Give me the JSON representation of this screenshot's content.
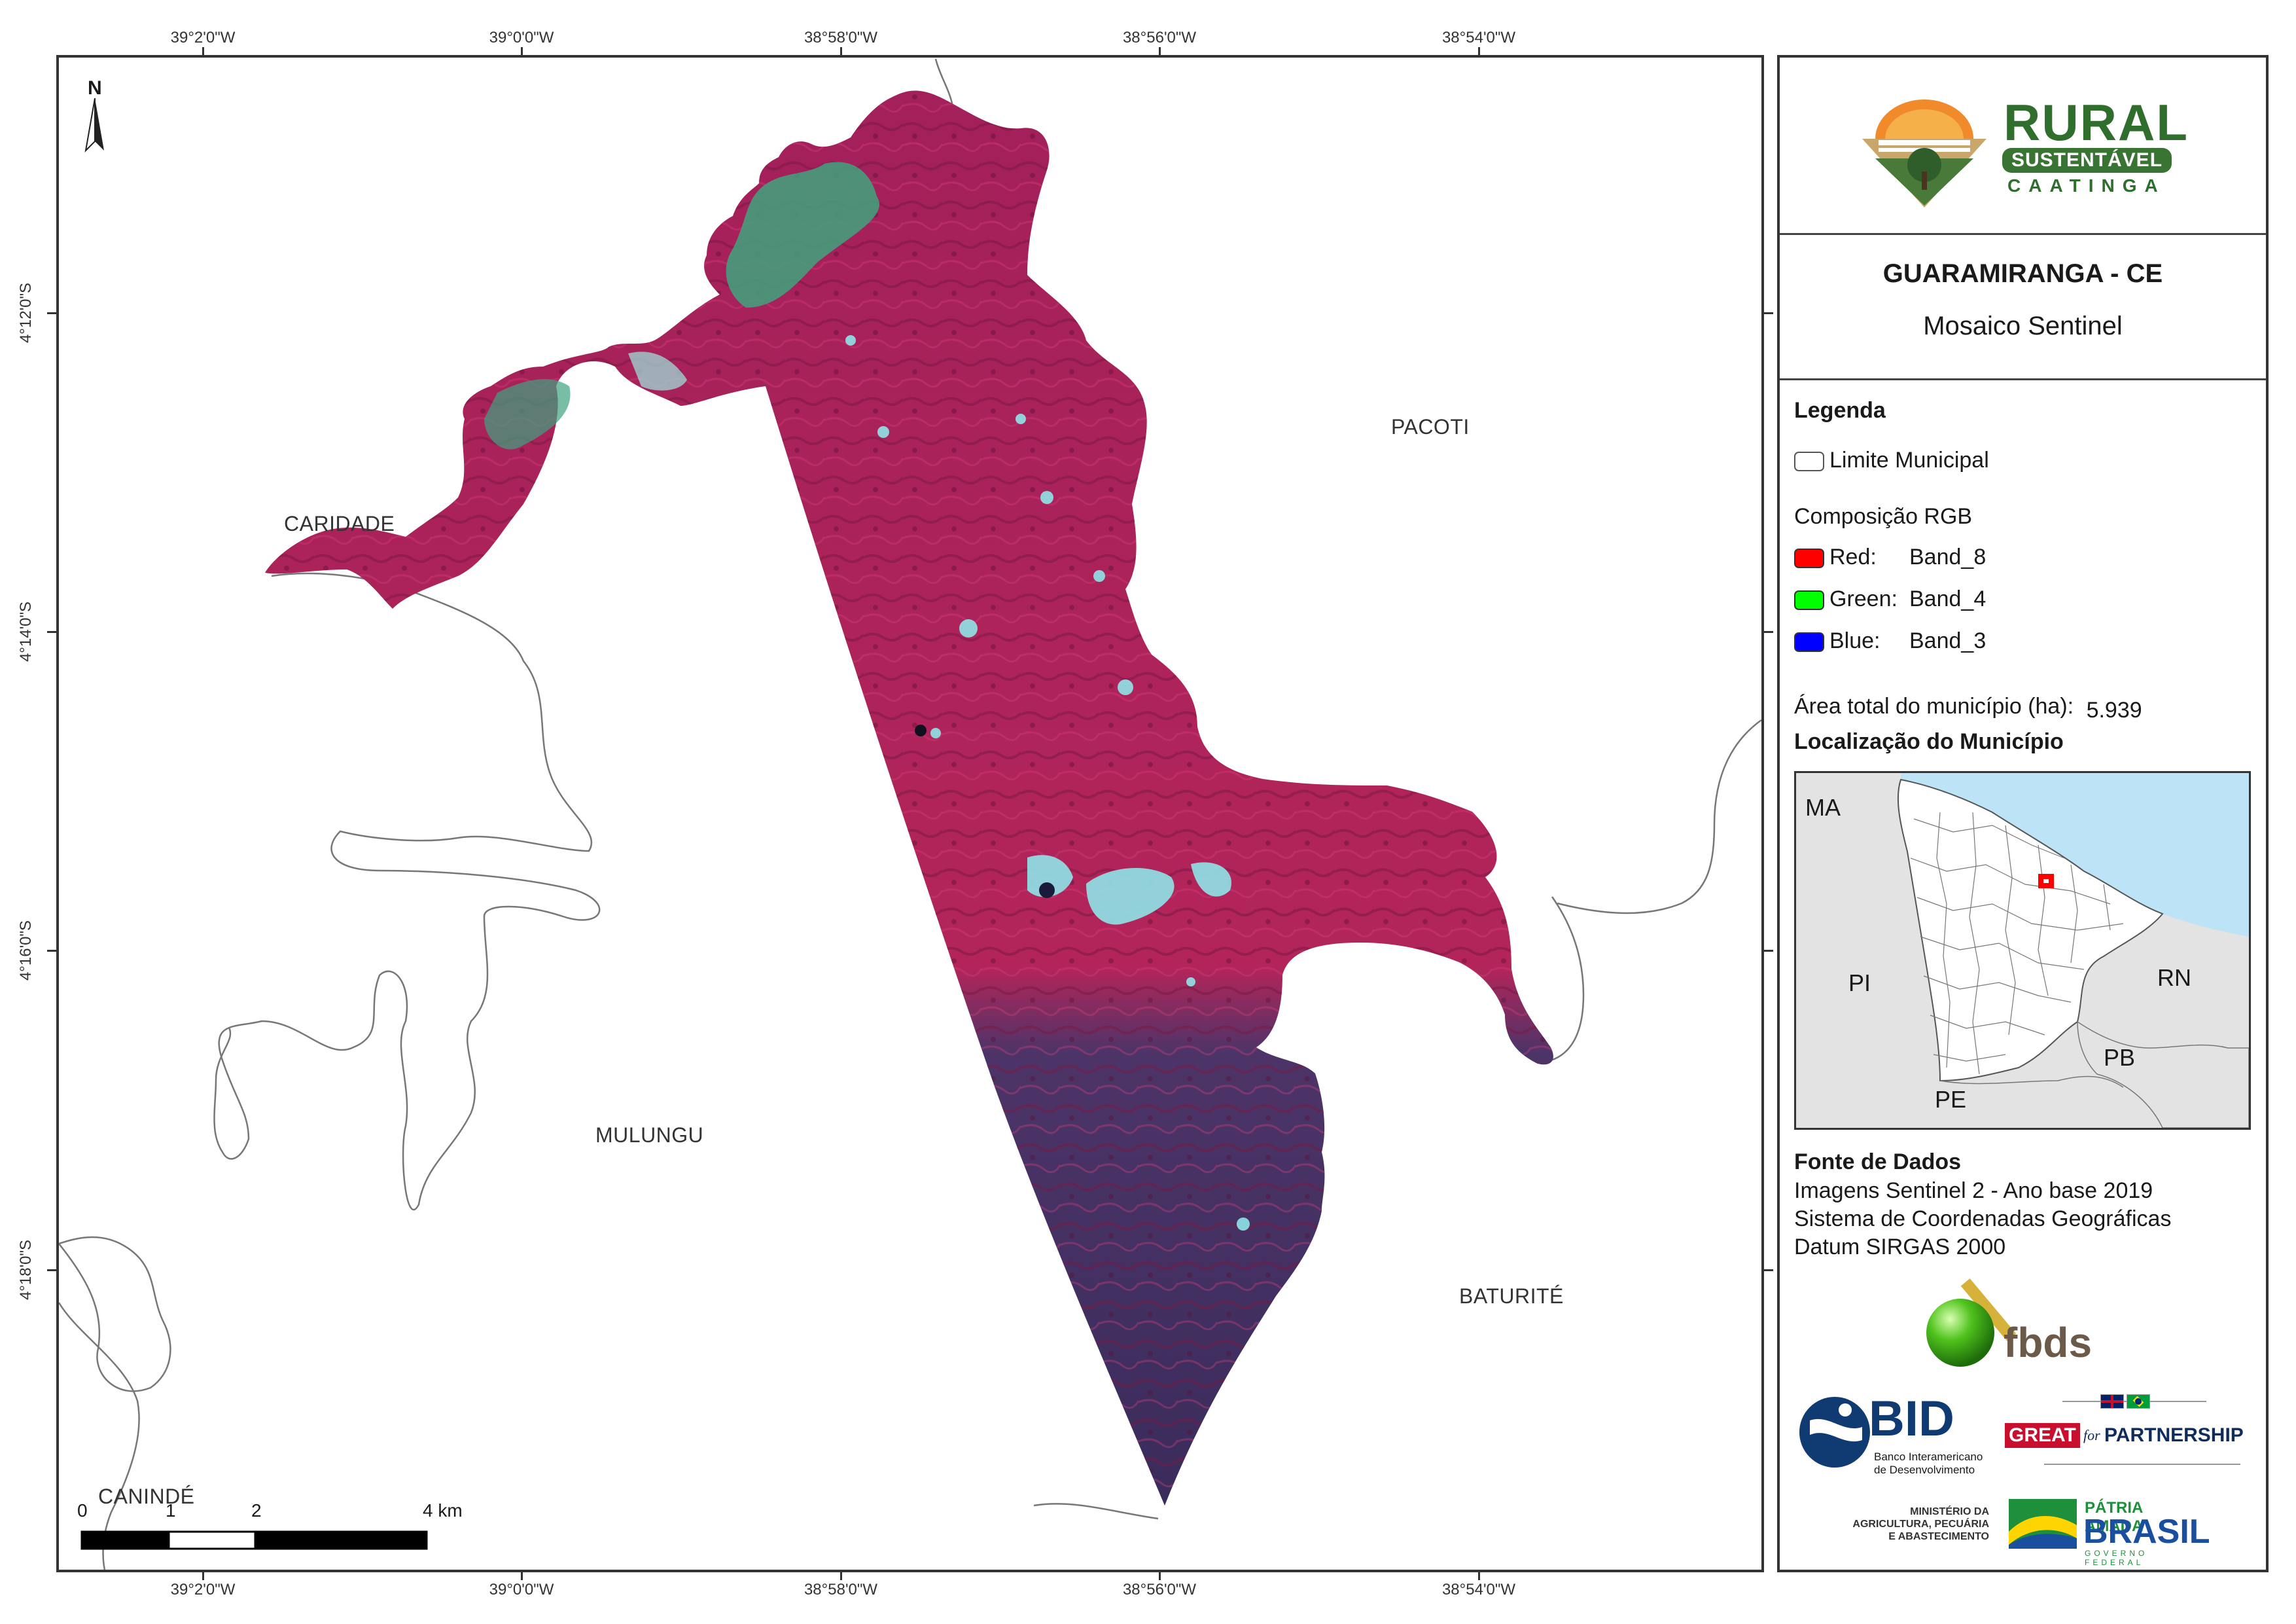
{
  "map": {
    "coords_top": [
      "39°2'0\"W",
      "39°0'0\"W",
      "38°58'0\"W",
      "38°56'0\"W",
      "38°54'0\"W"
    ],
    "coords_bottom": [
      "39°2'0\"W",
      "39°0'0\"W",
      "38°58'0\"W",
      "38°56'0\"W",
      "38°54'0\"W"
    ],
    "coords_left": [
      "4°12'0\"S",
      "4°14'0\"S",
      "4°16'0\"S",
      "4°18'0\"S"
    ],
    "north_label": "N",
    "municipalities": {
      "caridade": "CARIDADE",
      "pacoti": "PACOTI",
      "mulungu": "MULUNGU",
      "baturite": "BATURITÉ",
      "caninde": "CANINDÉ"
    },
    "scale": {
      "labels": [
        "0",
        "1",
        "2",
        "4 km"
      ]
    },
    "colors": {
      "vegetation": "#b0265a",
      "water": "#8fe4e8",
      "dark": "#3c2d5e",
      "green_patch": "#3fa37e"
    }
  },
  "panel": {
    "logo": {
      "line1": "RURAL",
      "line2": "SUSTENTÁVEL",
      "line3": "CAATINGA"
    },
    "title": "GUARAMIRANGA - CE",
    "subtitle": "Mosaico Sentinel",
    "legend": {
      "heading": "Legenda",
      "limit": "Limite Municipal",
      "rgb_heading": "Composição RGB",
      "red_label": "Red:",
      "red_band": "Band_8",
      "green_label": "Green:",
      "green_band": "Band_4",
      "blue_label": "Blue:",
      "blue_band": "Band_3",
      "colors": {
        "red": "#ff0000",
        "green": "#00ff00",
        "blue": "#0000ff"
      }
    },
    "area_label": "Área total do município (ha):",
    "area_value": "5.939",
    "location_heading": "Localização do Município",
    "inset": {
      "ma": "MA",
      "pi": "PI",
      "rn": "RN",
      "pb": "PB",
      "pe": "PE",
      "colors": {
        "ocean": "#bde3f7",
        "land": "#e3e3e3",
        "ceara": "#ffffff",
        "marker": "#ff0000"
      }
    },
    "sources": {
      "heading": "Fonte de Dados",
      "line1": "Imagens Sentinel 2 - Ano base 2019",
      "line2": "Sistema de Coordenadas Geográficas",
      "line3": "Datum SIRGAS 2000"
    },
    "logos": {
      "fbds": "fbds",
      "bid": "BID",
      "bid_sub1": "Banco Interamericano",
      "bid_sub2": "de Desenvolvimento",
      "great": "GREAT",
      "great_for": "for",
      "partnership": "PARTNERSHIP",
      "ministerio1": "MINISTÉRIO DA",
      "ministerio2": "AGRICULTURA, PECUÁRIA",
      "ministerio3": "E ABASTECIMENTO",
      "patria": "PÁTRIA AMADA",
      "brasil": "BRASIL",
      "governo": "GOVERNO FEDERAL"
    }
  }
}
